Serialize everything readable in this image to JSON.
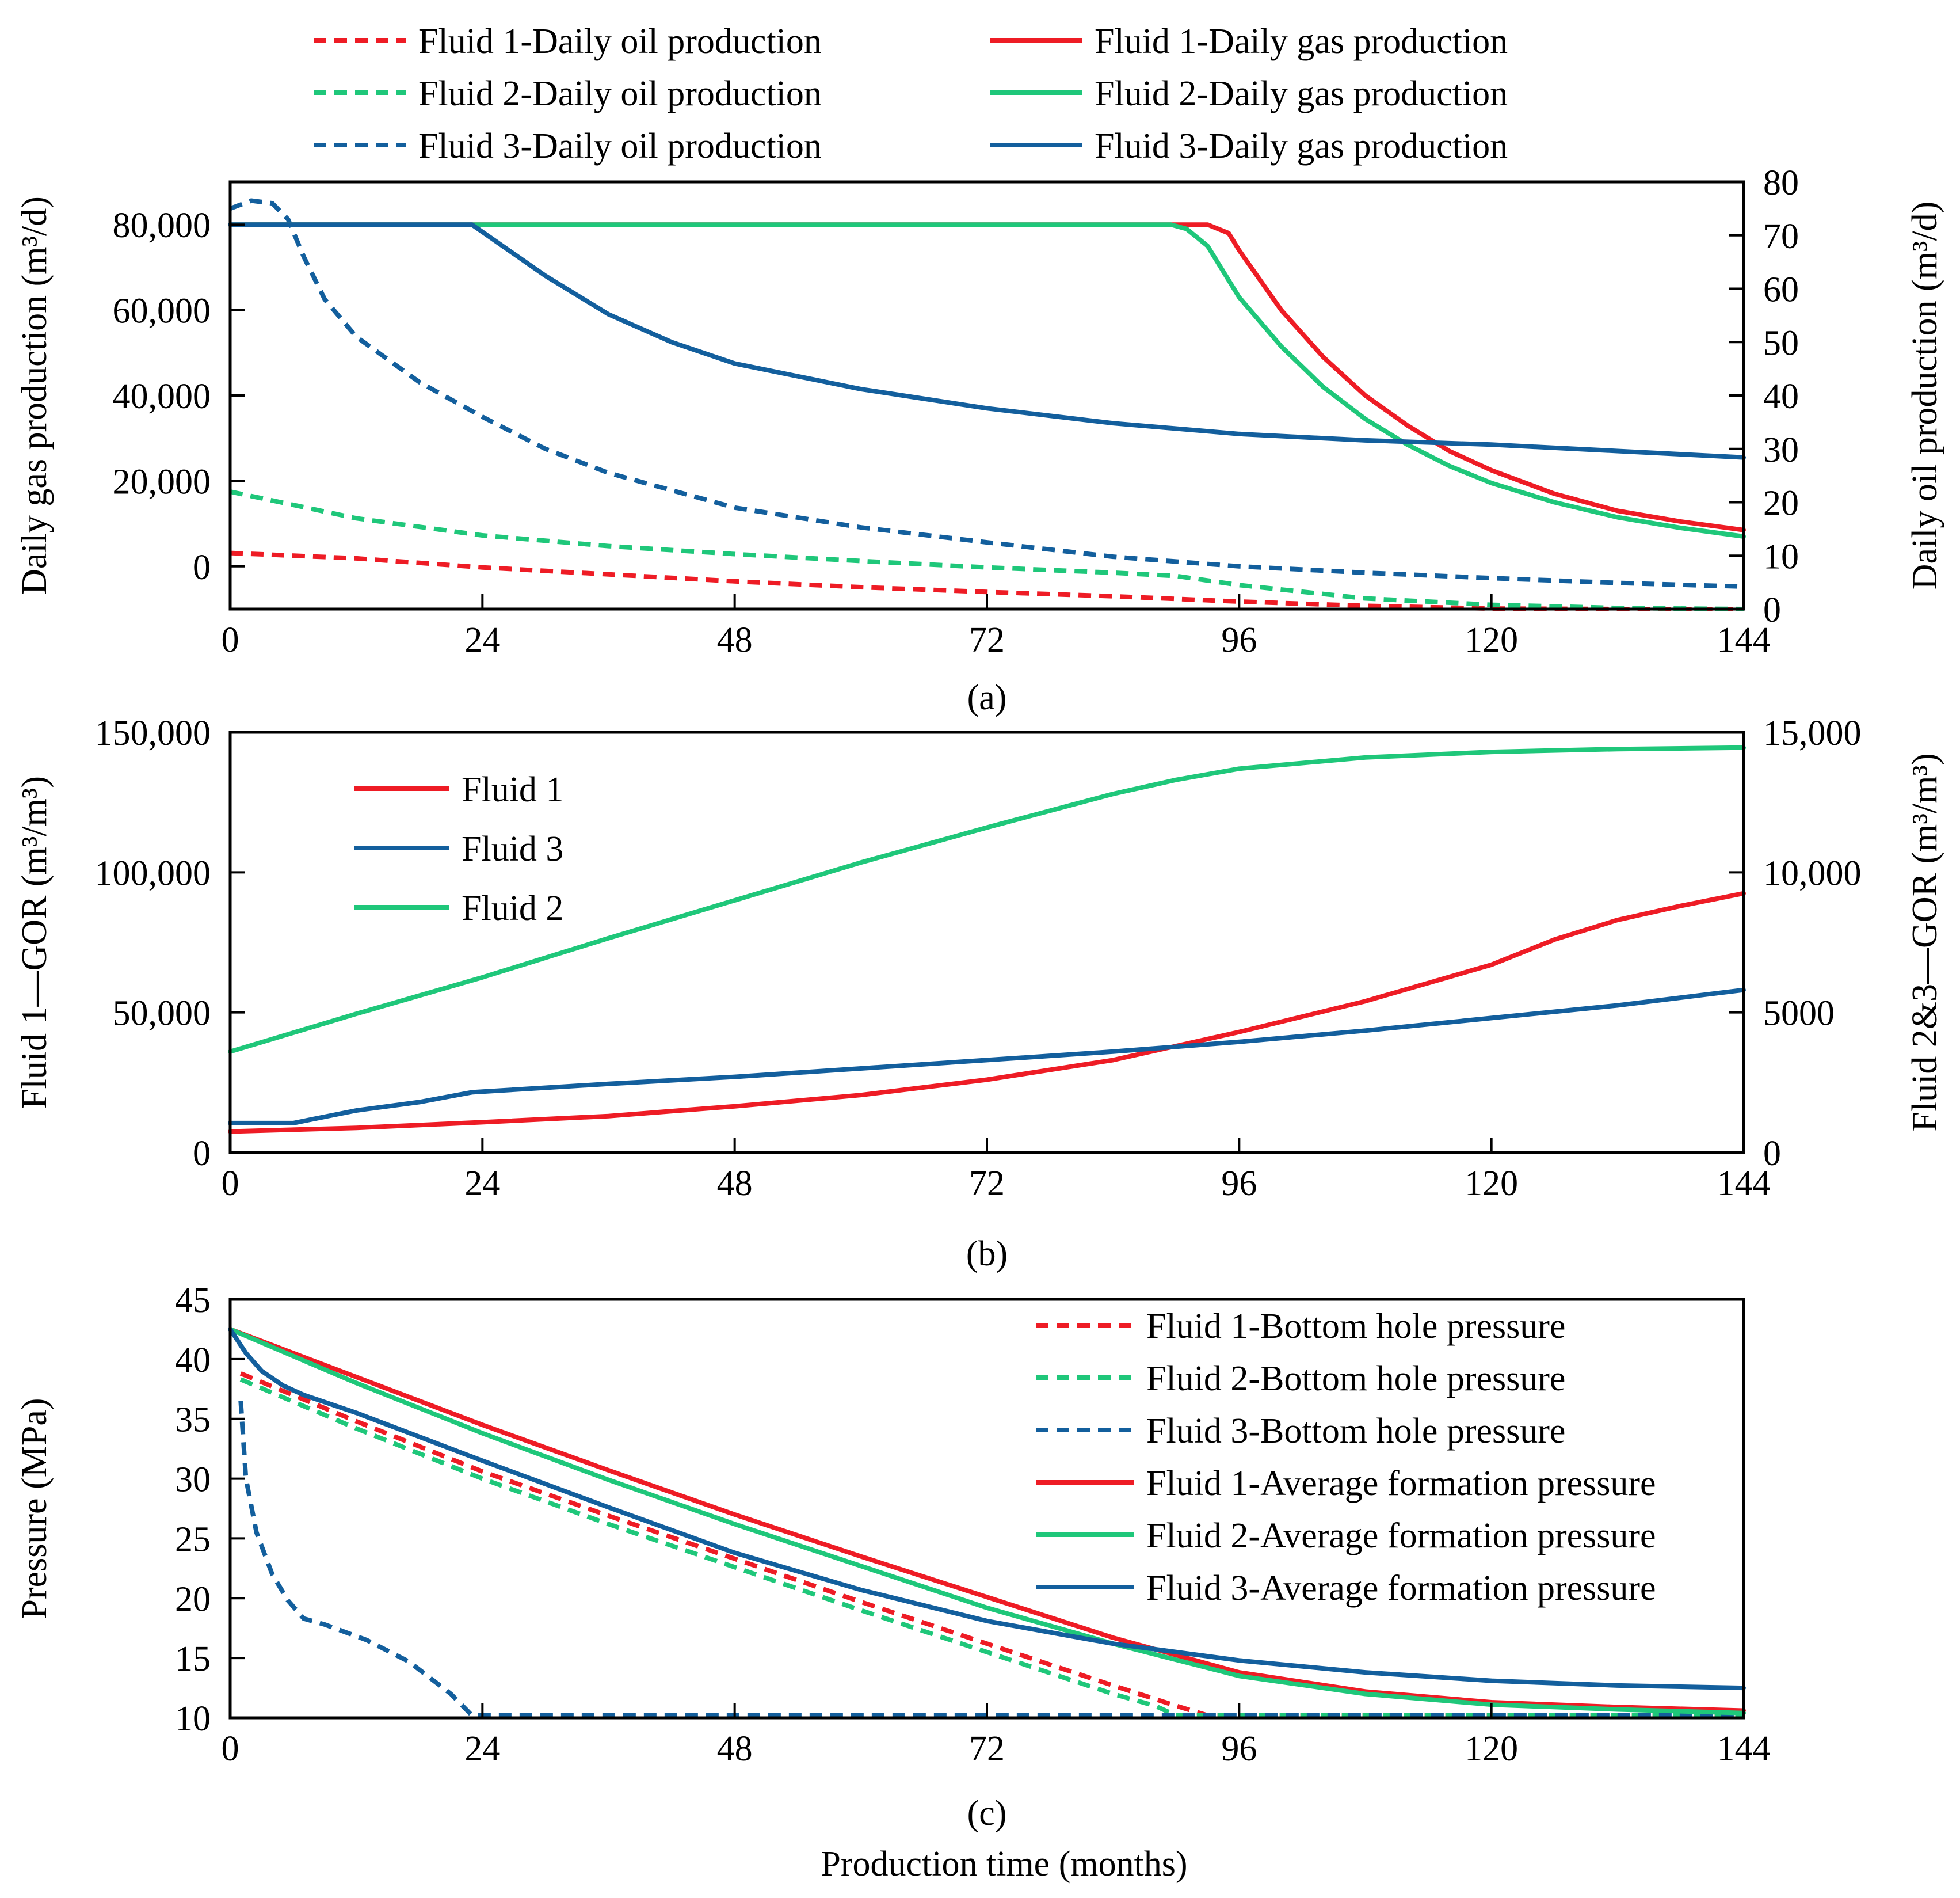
{
  "colors": {
    "fluid1": "#ee1c25",
    "fluid2": "#1fc77a",
    "fluid3": "#135f9d"
  },
  "chart_data": [
    {
      "type": "line",
      "caption": "(a)",
      "xlabel": "",
      "ylabel": "Daily gas production (m³/d)",
      "y2label": "Daily oil production (m³/d)",
      "xlim": [
        0,
        144
      ],
      "ylim": [
        -10000,
        90000
      ],
      "y2lim": [
        0,
        80
      ],
      "xticks": [
        0,
        24,
        48,
        72,
        96,
        120,
        144
      ],
      "yticks": [
        0,
        20000,
        40000,
        60000,
        80000
      ],
      "ytick_labels": [
        "0",
        "20,000",
        "40,000",
        "60,000",
        "80,000"
      ],
      "y2ticks": [
        0,
        10,
        20,
        30,
        40,
        50,
        60,
        70,
        80
      ],
      "y2tick_labels": [
        "0",
        "10",
        "20",
        "30",
        "40",
        "50",
        "60",
        "70",
        "80"
      ],
      "legend": "top, two columns",
      "series": [
        {
          "name": "Fluid 1-Daily oil production",
          "fluid": "fluid1",
          "dash": true,
          "axis": "right",
          "x": [
            0,
            12,
            24,
            36,
            48,
            60,
            72,
            84,
            96,
            108,
            120,
            132,
            144
          ],
          "y": [
            10.5,
            9.5,
            7.8,
            6.5,
            5.2,
            4.1,
            3.2,
            2.4,
            1.4,
            0.6,
            0.1,
            0,
            0
          ]
        },
        {
          "name": "Fluid 2-Daily oil production",
          "fluid": "fluid2",
          "dash": true,
          "axis": "right",
          "x": [
            0,
            6,
            12,
            24,
            36,
            48,
            60,
            72,
            84,
            90,
            96,
            108,
            120,
            132,
            144
          ],
          "y": [
            22,
            19.5,
            17,
            13.8,
            11.8,
            10.3,
            9,
            7.8,
            6.8,
            6.2,
            4.5,
            2,
            0.8,
            0.2,
            0
          ]
        },
        {
          "name": "Fluid 3-Daily oil production",
          "fluid": "fluid3",
          "dash": true,
          "axis": "right",
          "x": [
            0,
            2,
            4,
            5.5,
            7,
            9,
            12,
            18,
            24,
            30,
            36,
            48,
            60,
            72,
            84,
            96,
            108,
            120,
            132,
            144
          ],
          "y": [
            75,
            76.5,
            76,
            73,
            66,
            58,
            51,
            42.5,
            36,
            30,
            25.5,
            19,
            15.3,
            12.5,
            9.8,
            8,
            6.8,
            5.8,
            4.9,
            4.2
          ]
        },
        {
          "name": "Fluid 1-Daily gas production",
          "fluid": "fluid1",
          "dash": false,
          "axis": "left",
          "x": [
            0,
            24,
            48,
            72,
            93,
            95,
            96,
            100,
            104,
            108,
            112,
            116,
            120,
            126,
            132,
            138,
            144
          ],
          "y": [
            80000,
            80000,
            80000,
            80000,
            80000,
            78000,
            74000,
            60000,
            49000,
            40000,
            33000,
            27000,
            22500,
            17000,
            13000,
            10500,
            8500
          ]
        },
        {
          "name": "Fluid 2-Daily gas production",
          "fluid": "fluid2",
          "dash": false,
          "axis": "left",
          "x": [
            0,
            24,
            48,
            72,
            89.5,
            91,
            93,
            96,
            100,
            104,
            108,
            112,
            116,
            120,
            126,
            132,
            138,
            144
          ],
          "y": [
            80000,
            80000,
            80000,
            80000,
            80000,
            79000,
            75000,
            63000,
            51500,
            42000,
            34500,
            28500,
            23500,
            19500,
            15000,
            11500,
            9000,
            7000
          ]
        },
        {
          "name": "Fluid 3-Daily gas production",
          "fluid": "fluid3",
          "dash": false,
          "axis": "left",
          "x": [
            0,
            23,
            30,
            36,
            42,
            48,
            60,
            72,
            84,
            96,
            108,
            120,
            132,
            144
          ],
          "y": [
            80000,
            80000,
            68000,
            59000,
            52500,
            47500,
            41500,
            37000,
            33500,
            31000,
            29500,
            28500,
            27000,
            25500
          ]
        }
      ]
    },
    {
      "type": "line",
      "caption": "(b)",
      "xlabel": "",
      "ylabel": "Fluid 1—GOR (m³/m³)",
      "y2label": "Fluid 2&3—GOR (m³/m³)",
      "xlim": [
        0,
        144
      ],
      "ylim": [
        0,
        150000
      ],
      "y2lim": [
        0,
        15000
      ],
      "xticks": [
        0,
        24,
        48,
        72,
        96,
        120,
        144
      ],
      "yticks": [
        0,
        50000,
        100000,
        150000
      ],
      "ytick_labels": [
        "0",
        "50,000",
        "100,000",
        "150,000"
      ],
      "y2ticks": [
        0,
        5000,
        10000,
        15000
      ],
      "y2tick_labels": [
        "0",
        "5000",
        "10,000",
        "15,000"
      ],
      "legend": "top-left",
      "series": [
        {
          "name": "Fluid 1",
          "fluid": "fluid1",
          "axis": "left",
          "x": [
            0,
            12,
            24,
            36,
            48,
            60,
            72,
            84,
            96,
            108,
            120,
            126,
            132,
            138,
            144
          ],
          "y": [
            7500,
            8800,
            10800,
            13000,
            16500,
            20500,
            26000,
            33000,
            43000,
            54000,
            67000,
            76000,
            83000,
            88000,
            92500
          ]
        },
        {
          "name": "Fluid 3",
          "fluid": "fluid3",
          "axis": "right",
          "x": [
            0,
            4,
            6,
            8,
            12,
            18,
            23,
            36,
            48,
            60,
            72,
            84,
            96,
            108,
            120,
            132,
            144
          ],
          "y": [
            1050,
            1050,
            1050,
            1200,
            1500,
            1800,
            2150,
            2450,
            2700,
            3000,
            3300,
            3600,
            3950,
            4350,
            4800,
            5250,
            5800
          ]
        },
        {
          "name": "Fluid 2",
          "fluid": "fluid2",
          "axis": "right",
          "x": [
            0,
            12,
            24,
            36,
            48,
            60,
            72,
            84,
            90,
            96,
            108,
            120,
            132,
            144
          ],
          "y": [
            3600,
            4950,
            6250,
            7650,
            9000,
            10350,
            11600,
            12800,
            13300,
            13700,
            14100,
            14300,
            14400,
            14450
          ]
        }
      ]
    },
    {
      "type": "line",
      "caption": "(c)",
      "xlabel": "Production time (months)",
      "ylabel": "Pressure (MPa)",
      "xlim": [
        0,
        144
      ],
      "ylim": [
        10,
        45
      ],
      "xticks": [
        0,
        24,
        48,
        72,
        96,
        120,
        144
      ],
      "yticks": [
        10,
        15,
        20,
        25,
        30,
        35,
        40,
        45
      ],
      "ytick_labels": [
        "10",
        "15",
        "20",
        "25",
        "30",
        "35",
        "40",
        "45"
      ],
      "legend": "top-right",
      "series": [
        {
          "name": "Fluid 1-Bottom hole pressure",
          "fluid": "fluid1",
          "dash": true,
          "x": [
            1,
            12,
            24,
            36,
            48,
            60,
            72,
            84,
            90,
            93,
            144
          ],
          "y": [
            38.8,
            34.8,
            30.6,
            26.9,
            23.3,
            19.7,
            16.2,
            12.7,
            11,
            10.2,
            10.2
          ]
        },
        {
          "name": "Fluid 2-Bottom hole pressure",
          "fluid": "fluid2",
          "dash": true,
          "x": [
            1,
            12,
            24,
            36,
            48,
            60,
            72,
            84,
            88,
            90,
            144
          ],
          "y": [
            38.3,
            34.2,
            30,
            26.2,
            22.6,
            19,
            15.5,
            12,
            11,
            10.2,
            10.2
          ]
        },
        {
          "name": "Fluid 3-Bottom hole pressure",
          "fluid": "fluid3",
          "dash": true,
          "x": [
            1,
            1.5,
            2.5,
            4,
            5.5,
            7,
            9,
            13,
            17,
            21,
            23,
            144
          ],
          "y": [
            36.5,
            30,
            25.5,
            22,
            19.8,
            18.3,
            17.8,
            16.5,
            14.7,
            12,
            10.2,
            10.2
          ]
        },
        {
          "name": "Fluid 1-Average formation pressure",
          "fluid": "fluid1",
          "dash": false,
          "x": [
            0,
            12,
            24,
            36,
            48,
            60,
            72,
            84,
            96,
            108,
            120,
            132,
            144
          ],
          "y": [
            42.5,
            38.5,
            34.5,
            30.7,
            27,
            23.5,
            20.1,
            16.7,
            13.8,
            12.2,
            11.3,
            10.9,
            10.6
          ]
        },
        {
          "name": "Fluid 2-Average formation pressure",
          "fluid": "fluid2",
          "dash": false,
          "x": [
            0,
            12,
            24,
            36,
            48,
            60,
            72,
            84,
            96,
            108,
            120,
            132,
            144
          ],
          "y": [
            42.5,
            38,
            33.8,
            29.9,
            26.2,
            22.7,
            19.2,
            16.2,
            13.5,
            12,
            11.1,
            10.7,
            10.4
          ]
        },
        {
          "name": "Fluid 3-Average formation pressure",
          "fluid": "fluid3",
          "dash": false,
          "x": [
            0,
            1.5,
            3,
            5,
            7,
            12,
            24,
            36,
            48,
            60,
            72,
            84,
            96,
            108,
            120,
            132,
            144
          ],
          "y": [
            42.5,
            40.5,
            39,
            37.8,
            37,
            35.5,
            31.5,
            27.6,
            23.8,
            20.7,
            18.1,
            16.2,
            14.8,
            13.8,
            13.1,
            12.7,
            12.5
          ]
        }
      ]
    }
  ]
}
